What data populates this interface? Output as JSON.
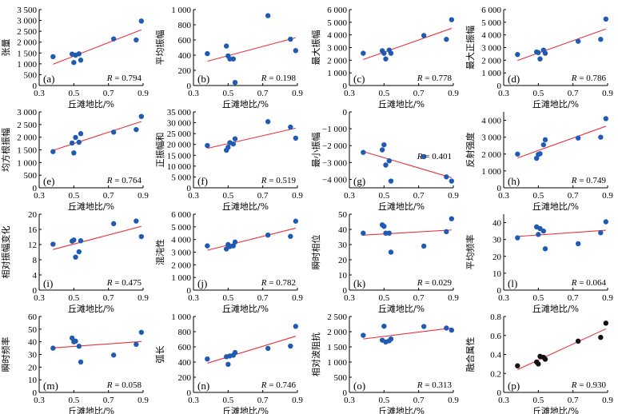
{
  "figure": {
    "xlabel": "丘滩地比/%",
    "r_prefix": "R = "
  },
  "chart_data": [
    {
      "type": "scatter",
      "panel": "(a)",
      "ylabel": "张量",
      "xlim": [
        0.3,
        0.9
      ],
      "xticks": [
        0.3,
        0.5,
        0.7,
        0.9
      ],
      "xtick_labels": [
        "0.3",
        "0.5",
        "0.7",
        "0.9"
      ],
      "ylim": [
        0,
        3500
      ],
      "yticks": [
        0,
        500,
        1000,
        1500,
        2000,
        2500,
        3000,
        3500
      ],
      "ytick_labels": [
        "0",
        "500",
        "1 000",
        "1 500",
        "2 000",
        "2 500",
        "3 000",
        "3 500"
      ],
      "x": [
        0.38,
        0.49,
        0.5,
        0.51,
        0.53,
        0.54,
        0.73,
        0.86,
        0.89
      ],
      "y": [
        1330,
        1450,
        1060,
        1400,
        1460,
        1170,
        2150,
        2100,
        2970
      ],
      "fit": [
        [
          0.38,
          980
        ],
        [
          0.89,
          2570
        ]
      ],
      "R": "0.794",
      "r_pos": "bottom-right",
      "color": "#1f5bb5"
    },
    {
      "type": "scatter",
      "panel": "(b)",
      "ylabel": "平均振幅",
      "xlim": [
        0.3,
        0.9
      ],
      "xticks": [
        0.3,
        0.5,
        0.7,
        0.9
      ],
      "xtick_labels": [
        "0.3",
        "0.5",
        "0.7",
        "0.9"
      ],
      "ylim": [
        0,
        1000
      ],
      "yticks": [
        0,
        200,
        400,
        600,
        800,
        1000
      ],
      "ytick_labels": [
        "0",
        "200",
        "400",
        "600",
        "800",
        "1 000"
      ],
      "x": [
        0.38,
        0.49,
        0.5,
        0.51,
        0.53,
        0.54,
        0.73,
        0.86,
        0.89
      ],
      "y": [
        420,
        520,
        390,
        350,
        350,
        40,
        920,
        610,
        460
      ],
      "fit": [
        [
          0.38,
          320
        ],
        [
          0.89,
          630
        ]
      ],
      "R": "0.198",
      "r_pos": "bottom-right",
      "color": "#1f5bb5"
    },
    {
      "type": "scatter",
      "panel": "(c)",
      "ylabel": "最大振幅",
      "xlim": [
        0.3,
        0.9
      ],
      "xticks": [
        0.3,
        0.5,
        0.7,
        0.9
      ],
      "xtick_labels": [
        "0.3",
        "0.5",
        "0.7",
        "0.9"
      ],
      "ylim": [
        0,
        6000
      ],
      "yticks": [
        0,
        1000,
        2000,
        3000,
        4000,
        5000,
        6000
      ],
      "ytick_labels": [
        "0",
        "1 000",
        "2 000",
        "3 000",
        "4 000",
        "5 000",
        "6 000"
      ],
      "x": [
        0.38,
        0.49,
        0.5,
        0.51,
        0.53,
        0.54,
        0.73,
        0.86,
        0.89
      ],
      "y": [
        2550,
        2750,
        2550,
        2100,
        2800,
        2550,
        3950,
        3650,
        5200
      ],
      "fit": [
        [
          0.38,
          2050
        ],
        [
          0.89,
          4520
        ]
      ],
      "R": "0.778",
      "r_pos": "bottom-right",
      "color": "#1f5bb5"
    },
    {
      "type": "scatter",
      "panel": "(d)",
      "ylabel": "最大正振幅",
      "xlim": [
        0.3,
        0.9
      ],
      "xticks": [
        0.3,
        0.5,
        0.7,
        0.9
      ],
      "xtick_labels": [
        "0.3",
        "0.5",
        "0.7",
        "0.9"
      ],
      "ylim": [
        0,
        6000
      ],
      "yticks": [
        0,
        1000,
        2000,
        3000,
        4000,
        5000,
        6000
      ],
      "ytick_labels": [
        "0",
        "1 000",
        "2 000",
        "3 000",
        "4 000",
        "5 000",
        "6 000"
      ],
      "x": [
        0.38,
        0.49,
        0.5,
        0.51,
        0.53,
        0.54,
        0.73,
        0.86,
        0.89
      ],
      "y": [
        2450,
        2650,
        2600,
        2100,
        2800,
        2550,
        3500,
        3650,
        5250
      ],
      "fit": [
        [
          0.38,
          1980
        ],
        [
          0.89,
          4470
        ]
      ],
      "R": "0.786",
      "r_pos": "bottom-right",
      "color": "#1f5bb5"
    },
    {
      "type": "scatter",
      "panel": "(e)",
      "ylabel": "均方根振幅",
      "xlim": [
        0.3,
        0.9
      ],
      "xticks": [
        0.3,
        0.5,
        0.7,
        0.9
      ],
      "xtick_labels": [
        "0.3",
        "0.5",
        "0.7",
        "0.9"
      ],
      "ylim": [
        0,
        3000
      ],
      "yticks": [
        0,
        500,
        1000,
        1500,
        2000,
        2500,
        3000
      ],
      "ytick_labels": [
        "0",
        "500",
        "1 000",
        "1 500",
        "2 000",
        "2 500",
        "3 000"
      ],
      "x": [
        0.38,
        0.49,
        0.5,
        0.51,
        0.53,
        0.54,
        0.73,
        0.86,
        0.89
      ],
      "y": [
        1430,
        1770,
        1380,
        1990,
        1800,
        2140,
        2200,
        2300,
        2820
      ],
      "fit": [
        [
          0.38,
          1480
        ],
        [
          0.89,
          2620
        ]
      ],
      "R": "0.764",
      "r_pos": "bottom-right",
      "color": "#1f5bb5"
    },
    {
      "type": "scatter",
      "panel": "(f)",
      "ylabel": "正振幅和",
      "xlim": [
        0.3,
        0.9
      ],
      "xticks": [
        0.3,
        0.5,
        0.7,
        0.9
      ],
      "xtick_labels": [
        "0.3",
        "0.5",
        "0.7",
        "0.9"
      ],
      "ylim": [
        0,
        35000
      ],
      "yticks": [
        0,
        5000,
        10000,
        15000,
        20000,
        25000,
        30000,
        35000
      ],
      "ytick_labels": [
        "0",
        "5 000",
        "10 000",
        "15 000",
        "20 000",
        "25 000",
        "30 000",
        "35 000"
      ],
      "x": [
        0.38,
        0.49,
        0.5,
        0.51,
        0.53,
        0.54,
        0.73,
        0.86,
        0.89
      ],
      "y": [
        19500,
        17300,
        18700,
        20800,
        20200,
        22600,
        30500,
        28000,
        22900
      ],
      "fit": [
        [
          0.38,
          18200
        ],
        [
          0.89,
          27500
        ]
      ],
      "R": "0.519",
      "r_pos": "bottom-right",
      "color": "#1f5bb5"
    },
    {
      "type": "scatter",
      "panel": "(g)",
      "ylabel": "最小振幅",
      "xlim": [
        0.3,
        0.9
      ],
      "xticks": [
        0.3,
        0.5,
        0.7,
        0.9
      ],
      "xtick_labels": [
        "0.3",
        "0.5",
        "0.7",
        "0.9"
      ],
      "ylim": [
        -4500,
        0
      ],
      "yticks": [
        -4000,
        -3000,
        -2000,
        -1000,
        0
      ],
      "ytick_labels": [
        "−4 000",
        "−3 000",
        "−2 000",
        "−1 000",
        "0"
      ],
      "x": [
        0.38,
        0.49,
        0.5,
        0.51,
        0.53,
        0.54,
        0.73,
        0.86,
        0.89
      ],
      "y": [
        -2400,
        -2250,
        -1950,
        -3150,
        -2900,
        -4100,
        -2650,
        -3850,
        -4100
      ],
      "fit": [
        [
          0.38,
          -2350
        ],
        [
          0.89,
          -3900
        ]
      ],
      "R": "0.401",
      "r_pos": "middle-right",
      "color": "#1f5bb5"
    },
    {
      "type": "scatter",
      "panel": "(h)",
      "ylabel": "反射强度",
      "xlim": [
        0.3,
        0.9
      ],
      "xticks": [
        0.3,
        0.5,
        0.7,
        0.9
      ],
      "xtick_labels": [
        "0.3",
        "0.5",
        "0.7",
        "0.9"
      ],
      "ylim": [
        0,
        4500
      ],
      "yticks": [
        0,
        1000,
        2000,
        3000,
        4000
      ],
      "ytick_labels": [
        "0",
        "1 000",
        "2 000",
        "3 000",
        "4 000"
      ],
      "x": [
        0.38,
        0.49,
        0.5,
        0.51,
        0.53,
        0.54,
        0.73,
        0.86,
        0.89
      ],
      "y": [
        2000,
        1750,
        1980,
        2020,
        2550,
        2850,
        2950,
        3000,
        4100
      ],
      "fit": [
        [
          0.38,
          1770
        ],
        [
          0.89,
          3650
        ]
      ],
      "R": "0.749",
      "r_pos": "bottom-right",
      "color": "#1f5bb5"
    },
    {
      "type": "scatter",
      "panel": "(i)",
      "ylabel": "相对振幅变化",
      "xlim": [
        0.3,
        0.9
      ],
      "xticks": [
        0.3,
        0.5,
        0.7,
        0.9
      ],
      "xtick_labels": [
        "0.3",
        "0.5",
        "0.7",
        "0.9"
      ],
      "ylim": [
        0,
        20
      ],
      "yticks": [
        0,
        4,
        8,
        12,
        16,
        20
      ],
      "ytick_labels": [
        "0",
        "4",
        "8",
        "12",
        "16",
        "20"
      ],
      "x": [
        0.38,
        0.49,
        0.5,
        0.51,
        0.53,
        0.54,
        0.73,
        0.86,
        0.89
      ],
      "y": [
        12.1,
        12.9,
        13.2,
        8.7,
        10.1,
        13.0,
        17.5,
        18.2,
        14.1
      ],
      "fit": [
        [
          0.38,
          10.7
        ],
        [
          0.89,
          16.8
        ]
      ],
      "R": "0.475",
      "r_pos": "bottom-right",
      "color": "#1f5bb5"
    },
    {
      "type": "scatter",
      "panel": "(j)",
      "ylabel": "混沌性",
      "xlim": [
        0.3,
        0.9
      ],
      "xticks": [
        0.3,
        0.5,
        0.7,
        0.9
      ],
      "xtick_labels": [
        "0.3",
        "0.5",
        "0.7",
        "0.9"
      ],
      "ylim": [
        0,
        6000
      ],
      "yticks": [
        0,
        1000,
        2000,
        3000,
        4000,
        5000,
        6000
      ],
      "ytick_labels": [
        "0",
        "1 000",
        "2 000",
        "3 000",
        "4 000",
        "5 000",
        "6 000"
      ],
      "x": [
        0.38,
        0.49,
        0.5,
        0.51,
        0.53,
        0.54,
        0.73,
        0.86,
        0.89
      ],
      "y": [
        3500,
        3250,
        3600,
        3450,
        3500,
        3800,
        4350,
        4250,
        5450
      ],
      "fit": [
        [
          0.38,
          3150
        ],
        [
          0.89,
          4900
        ]
      ],
      "R": "0.782",
      "r_pos": "bottom-right",
      "color": "#1f5bb5"
    },
    {
      "type": "scatter",
      "panel": "(k)",
      "ylabel": "瞬时相位",
      "xlim": [
        0.3,
        0.9
      ],
      "xticks": [
        0.3,
        0.5,
        0.7,
        0.9
      ],
      "xtick_labels": [
        "0.3",
        "0.5",
        "0.7",
        "0.9"
      ],
      "ylim": [
        0,
        50
      ],
      "yticks": [
        0,
        10,
        20,
        30,
        40,
        50
      ],
      "ytick_labels": [
        "0",
        "10",
        "20",
        "30",
        "40",
        "50"
      ],
      "x": [
        0.38,
        0.49,
        0.5,
        0.51,
        0.53,
        0.54,
        0.73,
        0.86,
        0.89
      ],
      "y": [
        37.5,
        43,
        42,
        37.5,
        37.5,
        25,
        29,
        38.5,
        47
      ],
      "fit": [
        [
          0.38,
          36.2
        ],
        [
          0.89,
          39.6
        ]
      ],
      "R": "0.029",
      "r_pos": "bottom-right",
      "color": "#1f5bb5"
    },
    {
      "type": "scatter",
      "panel": "(l)",
      "ylabel": "平均频率",
      "xlim": [
        0.3,
        0.9
      ],
      "xticks": [
        0.3,
        0.5,
        0.7,
        0.9
      ],
      "xtick_labels": [
        "0.3",
        "0.5",
        "0.7",
        "0.9"
      ],
      "ylim": [
        0,
        45
      ],
      "yticks": [
        0,
        10,
        20,
        30,
        40
      ],
      "ytick_labels": [
        "0",
        "10",
        "20",
        "30",
        "40"
      ],
      "x": [
        0.38,
        0.49,
        0.5,
        0.51,
        0.53,
        0.54,
        0.73,
        0.86,
        0.89
      ],
      "y": [
        31,
        37.5,
        33,
        36.5,
        35,
        24.5,
        27.5,
        34,
        40.5
      ],
      "fit": [
        [
          0.38,
          31.8
        ],
        [
          0.89,
          35.5
        ]
      ],
      "R": "0.064",
      "r_pos": "bottom-right",
      "color": "#1f5bb5"
    },
    {
      "type": "scatter",
      "panel": "(m)",
      "ylabel": "瞬时频率",
      "xlim": [
        0.3,
        0.9
      ],
      "xticks": [
        0.3,
        0.5,
        0.7,
        0.9
      ],
      "xtick_labels": [
        "0.3",
        "0.5",
        "0.7",
        "0.9"
      ],
      "ylim": [
        0,
        60
      ],
      "yticks": [
        0,
        10,
        20,
        30,
        40,
        50,
        60
      ],
      "ytick_labels": [
        "0",
        "10",
        "20",
        "30",
        "40",
        "50",
        "60"
      ],
      "x": [
        0.38,
        0.49,
        0.5,
        0.51,
        0.53,
        0.54,
        0.73,
        0.86,
        0.89
      ],
      "y": [
        35,
        43,
        40,
        40.5,
        36.5,
        24,
        29.5,
        38,
        47.5
      ],
      "fit": [
        [
          0.38,
          35.2
        ],
        [
          0.89,
          40.2
        ]
      ],
      "R": "0.058",
      "r_pos": "bottom-right",
      "color": "#1f5bb5"
    },
    {
      "type": "scatter",
      "panel": "(n)",
      "ylabel": "弧长",
      "xlim": [
        0.3,
        0.9
      ],
      "xticks": [
        0.3,
        0.5,
        0.7,
        0.9
      ],
      "xtick_labels": [
        "0.3",
        "0.5",
        "0.7",
        "0.9"
      ],
      "ylim": [
        0,
        1000
      ],
      "yticks": [
        0,
        200,
        400,
        600,
        800,
        1000
      ],
      "ytick_labels": [
        "0",
        "200",
        "400",
        "600",
        "800",
        "1 000"
      ],
      "x": [
        0.38,
        0.49,
        0.5,
        0.51,
        0.53,
        0.54,
        0.73,
        0.86,
        0.89
      ],
      "y": [
        440,
        470,
        370,
        480,
        490,
        525,
        580,
        610,
        870
      ],
      "fit": [
        [
          0.38,
          385
        ],
        [
          0.89,
          740
        ]
      ],
      "R": "0.746",
      "r_pos": "bottom-right",
      "color": "#1f5bb5"
    },
    {
      "type": "scatter",
      "panel": "(o)",
      "ylabel": "相对波阻抗",
      "xlim": [
        0.3,
        0.9
      ],
      "xticks": [
        0.3,
        0.5,
        0.7,
        0.9
      ],
      "xtick_labels": [
        "0.3",
        "0.5",
        "0.7",
        "0.9"
      ],
      "ylim": [
        0,
        2500
      ],
      "yticks": [
        0,
        500,
        1000,
        1500,
        2000,
        2500
      ],
      "ytick_labels": [
        "0",
        "500",
        "1 000",
        "1 500",
        "2 000",
        "2 500"
      ],
      "x": [
        0.38,
        0.49,
        0.5,
        0.51,
        0.53,
        0.54,
        0.73,
        0.86,
        0.89
      ],
      "y": [
        1880,
        1720,
        2180,
        1660,
        1700,
        1760,
        2170,
        2120,
        2050
      ],
      "fit": [
        [
          0.38,
          1760
        ],
        [
          0.89,
          2120
        ]
      ],
      "R": "0.313",
      "r_pos": "bottom-right",
      "color": "#1f5bb5"
    },
    {
      "type": "scatter",
      "panel": "(p)",
      "ylabel": "融合属性",
      "xlim": [
        0.3,
        0.9
      ],
      "xticks": [
        0.3,
        0.5,
        0.7,
        0.9
      ],
      "xtick_labels": [
        "0.3",
        "0.5",
        "0.7",
        "0.9"
      ],
      "ylim": [
        0,
        0.8
      ],
      "yticks": [
        0,
        0.2,
        0.4,
        0.6,
        0.8
      ],
      "ytick_labels": [
        "0",
        "0.2",
        "0.4",
        "0.6",
        "0.8"
      ],
      "x": [
        0.38,
        0.49,
        0.5,
        0.51,
        0.53,
        0.54,
        0.73,
        0.86,
        0.89
      ],
      "y": [
        0.28,
        0.32,
        0.3,
        0.38,
        0.37,
        0.35,
        0.54,
        0.58,
        0.73
      ],
      "fit": [
        [
          0.38,
          0.24
        ],
        [
          0.89,
          0.67
        ]
      ],
      "R": "0.930",
      "r_pos": "bottom-right",
      "color": "#111111"
    }
  ]
}
